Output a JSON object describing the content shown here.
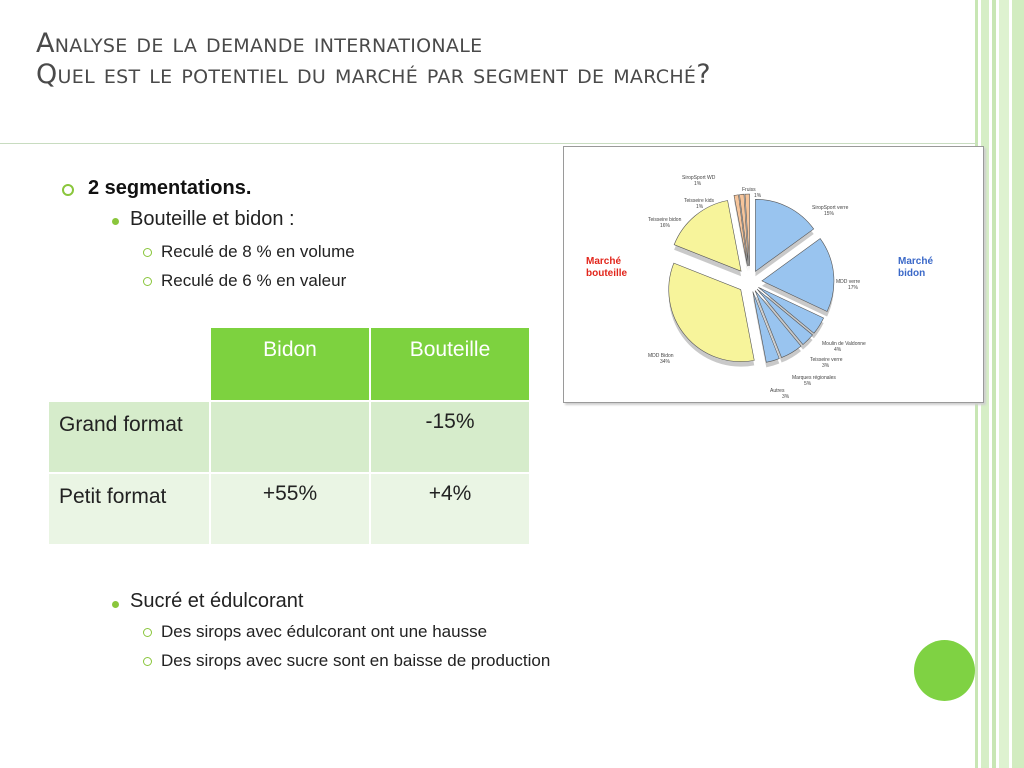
{
  "title": {
    "line1": "Analyse de la demande internationale",
    "line2": "Quel est le potentiel du marché par segment de marché?"
  },
  "bullets": {
    "main": "2 segmentations.",
    "bouteille_bidon": "Bouteille et bidon :",
    "sub1": "Reculé de 8 % en volume",
    "sub2": "Reculé de 6 % en valeur",
    "sucre": "Sucré et édulcorant",
    "sub3": "Des sirops avec édulcorant ont une hausse",
    "sub4": "Des sirops avec sucre sont en baisse de production"
  },
  "table": {
    "headers": [
      "",
      "Bidon",
      "Bouteille"
    ],
    "rows": [
      {
        "label": "Grand format",
        "bidon": "",
        "bouteille": "-15%"
      },
      {
        "label": "Petit format",
        "bidon": "+55%",
        "bouteille": "+4%"
      }
    ]
  },
  "chart_data": {
    "type": "pie",
    "legend_left": "Marché bouteille",
    "legend_right": "Marché bidon",
    "colors": {
      "bidon": "#99c4ef",
      "bouteille": "#f7f49b",
      "bouteille_legend": "#e2261c",
      "bidon_legend": "#3a68c8",
      "small": "#f6c49a"
    },
    "slices": [
      {
        "label": "SiropSport verre",
        "pct": "15%",
        "value": 15,
        "segment": "bidon"
      },
      {
        "label": "MDD verre",
        "pct": "17%",
        "value": 17,
        "segment": "bidon"
      },
      {
        "label": "Moulin de Valdonne",
        "pct": "4%",
        "value": 4,
        "segment": "bidon"
      },
      {
        "label": "Teisseire verre",
        "pct": "3%",
        "value": 3,
        "segment": "bidon"
      },
      {
        "label": "Marques régionales",
        "pct": "5%",
        "value": 5,
        "segment": "bidon"
      },
      {
        "label": "Autres",
        "pct": "3%",
        "value": 3,
        "segment": "bidon"
      },
      {
        "label": "MDD Bidon",
        "pct": "34%",
        "value": 34,
        "segment": "bouteille"
      },
      {
        "label": "Teisseire bidon",
        "pct": "16%",
        "value": 16,
        "segment": "bouteille"
      },
      {
        "label": "Teisseire kids",
        "pct": "1%",
        "value": 1,
        "segment": "small"
      },
      {
        "label": "SiropSport WD",
        "pct": "1%",
        "value": 1,
        "segment": "small"
      },
      {
        "label": "Fruiss",
        "pct": "1%",
        "value": 1,
        "segment": "small"
      }
    ]
  }
}
